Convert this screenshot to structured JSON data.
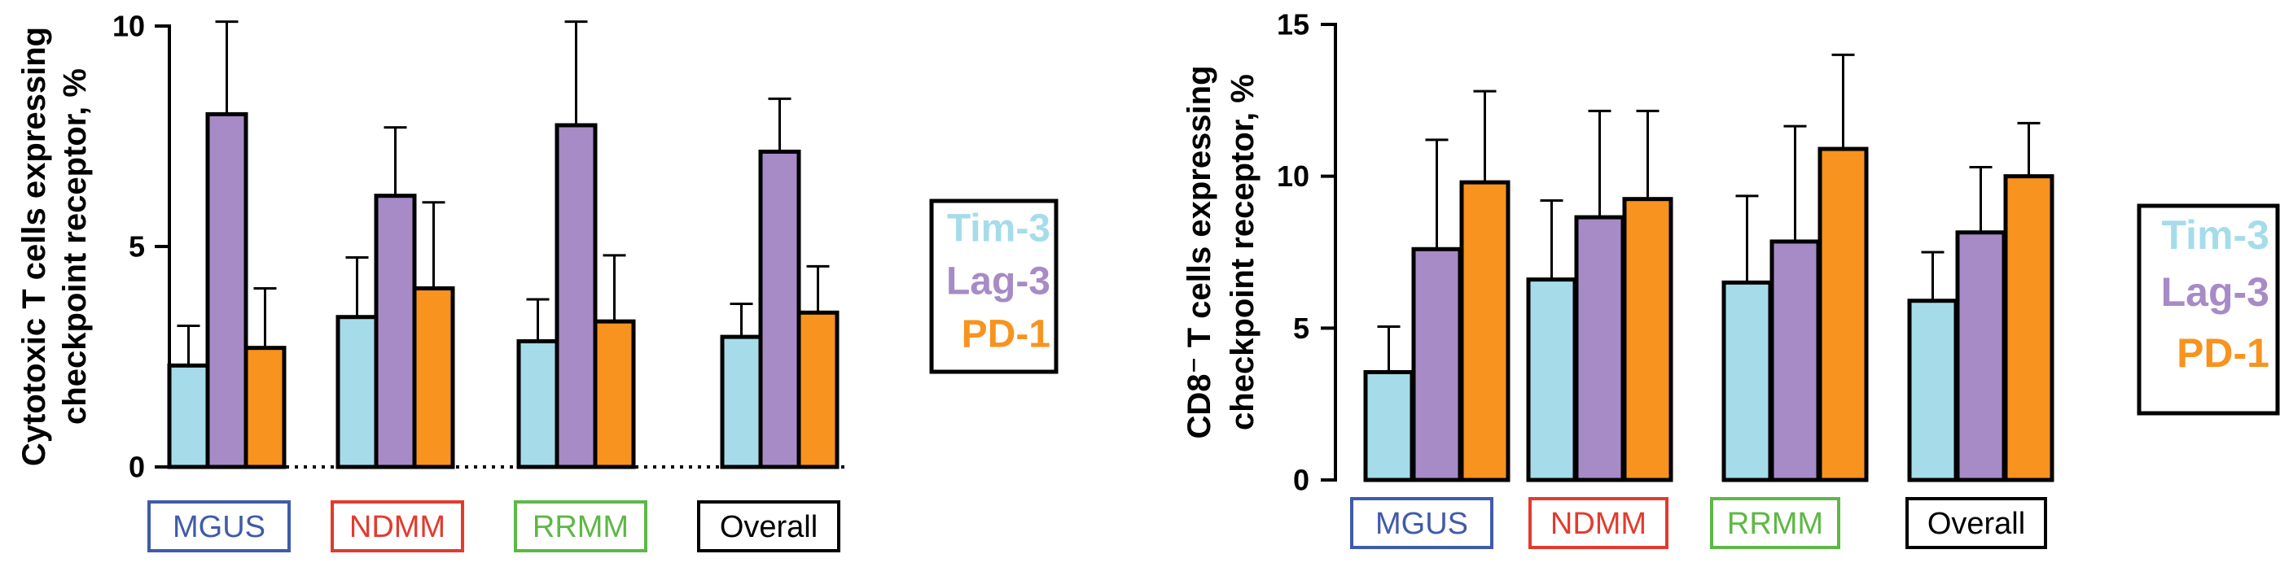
{
  "chart_data": [
    {
      "type": "bar",
      "ylabel_line1": "Cytotoxic T cells expressing",
      "ylabel_line2": "checkpoint receptor, %",
      "ylim": [
        0,
        10
      ],
      "yticks": [
        0,
        5,
        10
      ],
      "baseline_dotted": true,
      "categories": [
        "MGUS",
        "NDMM",
        "RRMM",
        "Overall"
      ],
      "category_colors": [
        "#3F5BA9",
        "#E23B2E",
        "#5DB845",
        "#000000"
      ],
      "series": [
        {
          "name": "Tim-3",
          "color": "#A6DCEA",
          "values": [
            2.3,
            3.4,
            2.85,
            2.95
          ],
          "errors": [
            0.9,
            1.35,
            0.95,
            0.75
          ]
        },
        {
          "name": "Lag-3",
          "color": "#A78BC6",
          "values": [
            8.0,
            6.15,
            7.75,
            7.15
          ],
          "errors": [
            2.1,
            1.55,
            2.35,
            1.2
          ]
        },
        {
          "name": "PD-1",
          "color": "#F7931E",
          "values": [
            2.7,
            4.05,
            3.3,
            3.5
          ],
          "errors": [
            1.35,
            1.95,
            1.5,
            1.05
          ]
        }
      ],
      "legend": [
        "Tim-3",
        "Lag-3",
        "PD-1"
      ]
    },
    {
      "type": "bar",
      "ylabel_line1": "CD8⁻ T cells expressing",
      "ylabel_line2": "checkpoint receptor, %",
      "ylim": [
        0,
        15
      ],
      "yticks": [
        0,
        5,
        10,
        15
      ],
      "baseline_dotted": false,
      "categories": [
        "MGUS",
        "NDMM",
        "RRMM",
        "Overall"
      ],
      "category_colors": [
        "#3F5BA9",
        "#E23B2E",
        "#5DB845",
        "#000000"
      ],
      "series": [
        {
          "name": "Tim-3",
          "color": "#A6DCEA",
          "values": [
            3.55,
            6.6,
            6.5,
            5.9
          ],
          "errors": [
            1.5,
            2.6,
            2.85,
            1.6
          ]
        },
        {
          "name": "Lag-3",
          "color": "#A78BC6",
          "values": [
            7.6,
            8.65,
            7.85,
            8.15
          ],
          "errors": [
            3.6,
            3.5,
            3.8,
            2.15
          ]
        },
        {
          "name": "PD-1",
          "color": "#F7931E",
          "values": [
            9.8,
            9.25,
            10.9,
            10.0
          ],
          "errors": [
            3.0,
            2.9,
            3.1,
            1.75
          ]
        }
      ],
      "legend": [
        "Tim-3",
        "Lag-3",
        "PD-1"
      ]
    }
  ]
}
